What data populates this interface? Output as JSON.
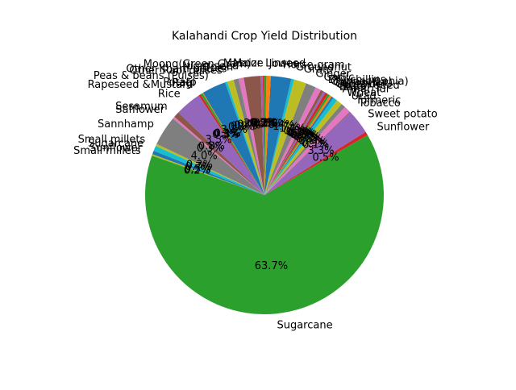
{
  "chart_data": {
    "type": "pie",
    "title": "Kalahandi Crop Yield Distribution",
    "start_angle_deg": 160,
    "direction": "counterclockwise",
    "pct_format": "{:.1f}%",
    "slices": [
      {
        "label": "Small millets",
        "value": 0.2,
        "color": "#bcbd22"
      },
      {
        "label": "Sugarcane",
        "value": 64.7,
        "color": "#2ca02c"
      },
      {
        "label": "Sunflower",
        "value": 0.5,
        "color": "#d62728"
      },
      {
        "label": "Sweet potato",
        "value": 3.4,
        "color": "#9467bd"
      },
      {
        "label": "Tobacco",
        "value": 0.1,
        "color": "#8c564b"
      },
      {
        "label": "Turmeric",
        "value": 0.9,
        "color": "#e377c2"
      },
      {
        "label": "Urad",
        "value": 0.6,
        "color": "#7f7f7f"
      },
      {
        "label": "Wheat",
        "value": 0.8,
        "color": "#bcbd22"
      },
      {
        "label": "Arhar/Tur",
        "value": 0.6,
        "color": "#17becf"
      },
      {
        "label": "Bajra",
        "value": 0.3,
        "color": "#1f77b4"
      },
      {
        "label": "Castor seed",
        "value": 0.3,
        "color": "#ff7f0e"
      },
      {
        "label": "Coriander",
        "value": 0.3,
        "color": "#2ca02c"
      },
      {
        "label": "Cotton(lint)",
        "value": 0.4,
        "color": "#d62728"
      },
      {
        "label": "Cowpea(Lobia)",
        "value": 0.3,
        "color": "#9467bd"
      },
      {
        "label": "Dry chillies",
        "value": 0.4,
        "color": "#8c564b"
      },
      {
        "label": "Garlic",
        "value": 0.8,
        "color": "#e377c2"
      },
      {
        "label": "Ginger",
        "value": 1.4,
        "color": "#7f7f7f"
      },
      {
        "label": "Gram",
        "value": 1.7,
        "color": "#bcbd22"
      },
      {
        "label": "Groundnut",
        "value": 0.4,
        "color": "#17becf"
      },
      {
        "label": "Horse-gram",
        "value": 2.8,
        "color": "#1f77b4"
      },
      {
        "label": "Jowar",
        "value": 0.6,
        "color": "#ff7f0e"
      },
      {
        "label": "Linseed",
        "value": 0.3,
        "color": "#2ca02c"
      },
      {
        "label": "Maize",
        "value": 0.2,
        "color": "#d62728"
      },
      {
        "label": "Masoor",
        "value": 0.3,
        "color": "#9467bd"
      },
      {
        "label": "Moong(Green Gram)",
        "value": 2.3,
        "color": "#8c564b"
      },
      {
        "label": "Niger seed",
        "value": 0.7,
        "color": "#e377c2"
      },
      {
        "label": "Onion",
        "value": 0.7,
        "color": "#7f7f7f"
      },
      {
        "label": "Other Kharif pulses",
        "value": 0.9,
        "color": "#bcbd22"
      },
      {
        "label": "Other Rabi pulses",
        "value": 0.3,
        "color": "#17becf"
      },
      {
        "label": "Peas & beans (Pulses)",
        "value": 3.3,
        "color": "#1f77b4"
      },
      {
        "label": "Potato",
        "value": 0.1,
        "color": "#ff7f0e"
      },
      {
        "label": "Ragi",
        "value": 0.3,
        "color": "#2ca02c"
      },
      {
        "label": "Rapeseed &Mustard",
        "value": 0.3,
        "color": "#d62728"
      },
      {
        "label": "Rice",
        "value": 3.6,
        "color": "#9467bd"
      },
      {
        "label": "Sesamum",
        "value": 0.8,
        "color": "#8c564b"
      },
      {
        "label": "Safflower",
        "value": 0.3,
        "color": "#e377c2"
      },
      {
        "label": "Sannhamp",
        "value": 4.1,
        "color": "#7f7f7f"
      },
      {
        "label": "Small millets ",
        "value": 0.3,
        "color": "#bcbd22"
      },
      {
        "label": "Sugarcane ",
        "value": 0.7,
        "color": "#17becf"
      },
      {
        "label": "Sunflower ",
        "value": 0.5,
        "color": "#1f77b4"
      }
    ]
  }
}
